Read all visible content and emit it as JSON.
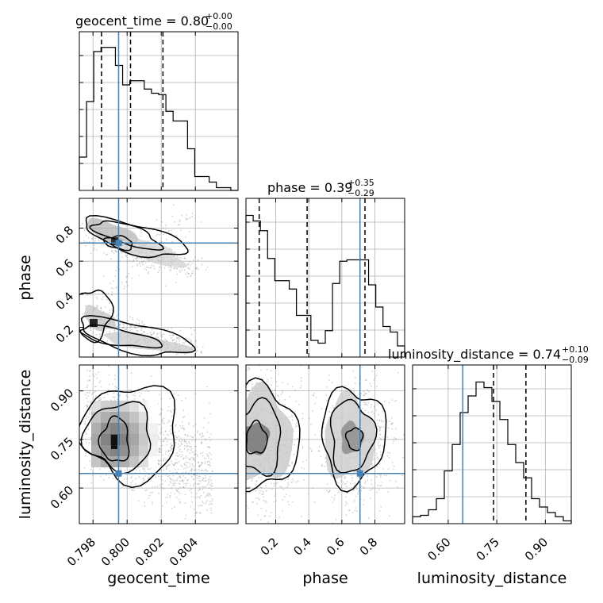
{
  "colors": {
    "truth": "#4682b4",
    "hist": "#000000",
    "grid": "#b0b0b0",
    "scatter": "#808080"
  },
  "titles": {
    "geocent_time": {
      "main": "geocent_time = 0.80",
      "sup": "+0.00",
      "sub": "−0.00"
    },
    "phase": {
      "main": "phase = 0.39",
      "sup": "+0.35",
      "sub": "−0.29"
    },
    "luminosity_distance": {
      "main": "luminosity_distance = 0.74",
      "sup": "+0.10",
      "sub": "−0.09"
    }
  },
  "labels": {
    "x_geocent_time": "geocent_time",
    "x_phase": "phase",
    "x_luminosity_distance": "luminosity_distance",
    "y_phase": "phase",
    "y_luminosity_distance": "luminosity_distance"
  },
  "chart_data": {
    "type": "corner",
    "parameters": [
      "geocent_time",
      "phase",
      "luminosity_distance"
    ],
    "ranges": {
      "geocent_time": [
        0.7972,
        0.8065
      ],
      "phase": [
        0.02,
        0.98
      ],
      "luminosity_distance": [
        0.49,
        0.98
      ]
    },
    "ticks": {
      "geocent_time": [
        0.798,
        0.8,
        0.802,
        0.804
      ],
      "geocent_time_labels": [
        "0.798",
        "0.800",
        "0.802",
        "0.804"
      ],
      "phase": [
        0.2,
        0.4,
        0.6,
        0.8
      ],
      "phase_labels": [
        "0.2",
        "0.4",
        "0.6",
        "0.8"
      ],
      "luminosity_distance": [
        0.6,
        0.75,
        0.9
      ],
      "luminosity_distance_labels": [
        "0.60",
        "0.75",
        "0.90"
      ]
    },
    "truths": {
      "geocent_time": 0.7995,
      "phase": 0.71,
      "luminosity_distance": 0.645
    },
    "quantiles": {
      "geocent_time": [
        0.7985,
        0.8002,
        0.8021
      ],
      "phase": [
        0.1,
        0.39,
        0.74
      ],
      "luminosity_distance": [
        0.645,
        0.74,
        0.84
      ]
    },
    "histograms": {
      "geocent_time": [
        0.24,
        0.64,
        1.0,
        1.03,
        1.03,
        0.9,
        0.76,
        0.79,
        0.79,
        0.73,
        0.7,
        0.69,
        0.57,
        0.5,
        0.5,
        0.3,
        0.1,
        0.1,
        0.06,
        0.02,
        0.02,
        0.0
      ],
      "phase": [
        1.02,
        0.98,
        0.91,
        0.71,
        0.55,
        0.55,
        0.49,
        0.3,
        0.3,
        0.12,
        0.1,
        0.19,
        0.53,
        0.69,
        0.7,
        0.7,
        0.7,
        0.52,
        0.36,
        0.22,
        0.18,
        0.08
      ],
      "luminosity_distance": [
        0.05,
        0.06,
        0.1,
        0.18,
        0.38,
        0.57,
        0.8,
        0.92,
        1.02,
        0.98,
        0.88,
        0.75,
        0.57,
        0.44,
        0.33,
        0.18,
        0.12,
        0.08,
        0.05,
        0.02
      ]
    },
    "grid": true
  }
}
